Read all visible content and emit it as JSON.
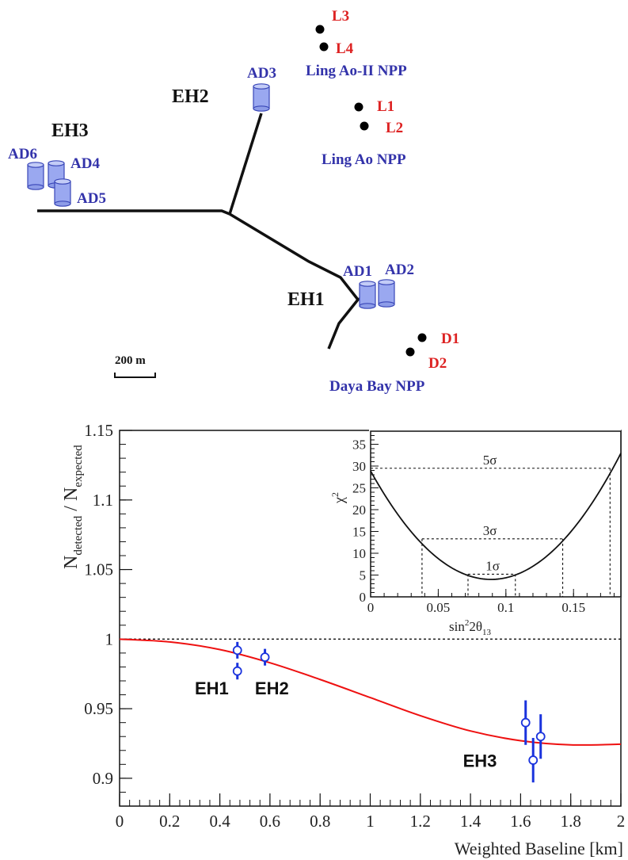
{
  "map": {
    "halls": [
      {
        "id": "EH1",
        "label": "EH1"
      },
      {
        "id": "EH2",
        "label": "EH2"
      },
      {
        "id": "EH3",
        "label": "EH3"
      }
    ],
    "detectors": [
      {
        "id": "AD1",
        "label": "AD1"
      },
      {
        "id": "AD2",
        "label": "AD2"
      },
      {
        "id": "AD3",
        "label": "AD3"
      },
      {
        "id": "AD4",
        "label": "AD4"
      },
      {
        "id": "AD5",
        "label": "AD5"
      },
      {
        "id": "AD6",
        "label": "AD6"
      }
    ],
    "reactors": [
      {
        "id": "L1",
        "label": "L1"
      },
      {
        "id": "L2",
        "label": "L2"
      },
      {
        "id": "L3",
        "label": "L3"
      },
      {
        "id": "L4",
        "label": "L4"
      },
      {
        "id": "D1",
        "label": "D1"
      },
      {
        "id": "D2",
        "label": "D2"
      }
    ],
    "plants": [
      {
        "id": "ling-ao-2",
        "label": "Ling Ao-II NPP"
      },
      {
        "id": "ling-ao",
        "label": "Ling Ao NPP"
      },
      {
        "id": "daya-bay",
        "label": "Daya Bay NPP"
      }
    ],
    "scale_label": "200 m",
    "colors": {
      "detector": "#3333aa",
      "reactor": "#dd2222",
      "tunnel": "#111111",
      "detector_fill": "#9aa8f0"
    }
  },
  "chart_data": [
    {
      "type": "scatter",
      "xlabel": "Weighted Baseline [km]",
      "ylabel_main": "N",
      "ylabel_num_sub": "detected",
      "ylabel_sep": " / N",
      "ylabel_den_sub": "expected",
      "xlim": [
        0,
        2
      ],
      "ylim": [
        0.88,
        1.15
      ],
      "xticks": [
        0,
        0.2,
        0.4,
        0.6,
        0.8,
        1,
        1.2,
        1.4,
        1.6,
        1.8,
        2
      ],
      "xtick_labels": [
        "0",
        "0.2",
        "0.4",
        "0.6",
        "0.8",
        "1",
        "1.2",
        "1.4",
        "1.6",
        "1.8",
        "2"
      ],
      "yticks": [
        0.9,
        0.95,
        1,
        1.05,
        1.1,
        1.15
      ],
      "ytick_labels": [
        "0.9",
        "0.95",
        "1",
        "1.05",
        "1.1",
        "1.15"
      ],
      "reference_line": 1.0,
      "points": [
        {
          "x": 0.47,
          "y": 0.992,
          "err": 0.006
        },
        {
          "x": 0.47,
          "y": 0.977,
          "err": 0.006
        },
        {
          "x": 0.58,
          "y": 0.987,
          "err": 0.006
        },
        {
          "x": 1.62,
          "y": 0.94,
          "err": 0.016
        },
        {
          "x": 1.65,
          "y": 0.913,
          "err": 0.016
        },
        {
          "x": 1.68,
          "y": 0.93,
          "err": 0.016
        }
      ],
      "curve": {
        "min_ratio": 0.924,
        "x_min": 1.8,
        "points": [
          [
            0,
            1.0
          ],
          [
            0.2,
            0.998
          ],
          [
            0.4,
            0.9925
          ],
          [
            0.6,
            0.983
          ],
          [
            0.8,
            0.971
          ],
          [
            1.0,
            0.958
          ],
          [
            1.2,
            0.945
          ],
          [
            1.4,
            0.934
          ],
          [
            1.6,
            0.927
          ],
          [
            1.8,
            0.924
          ],
          [
            2.0,
            0.9245
          ]
        ]
      },
      "annotations": [
        {
          "id": "eh1",
          "text": "EH1",
          "x": 0.36,
          "y": 0.975
        },
        {
          "id": "eh2",
          "text": "EH2",
          "x": 0.61,
          "y": 0.975
        },
        {
          "id": "eh3",
          "text": "EH3",
          "x": 1.5,
          "y": 0.923
        }
      ],
      "colors": {
        "points": "#1a33dd",
        "curve": "#ee1111"
      }
    },
    {
      "type": "line",
      "xlabel_main": "sin",
      "xlabel_sup": "2",
      "xlabel_rest": "2θ",
      "xlabel_sub": "13",
      "ylabel_main": "χ",
      "ylabel_sup": "2",
      "xlim": [
        0,
        0.185
      ],
      "ylim": [
        0,
        38
      ],
      "xticks": [
        0,
        0.05,
        0.1,
        0.15
      ],
      "xtick_labels": [
        "0",
        "0.05",
        "0.1",
        "0.15"
      ],
      "yticks": [
        0,
        5,
        10,
        15,
        20,
        25,
        30,
        35
      ],
      "ytick_labels": [
        "0",
        "5",
        "10",
        "15",
        "20",
        "25",
        "30",
        "35"
      ],
      "curve": {
        "x_min": 0.089,
        "chi2_min": 4.0,
        "curvature": 3140,
        "x_start": 0.0,
        "x_end": 0.185
      },
      "levels": [
        {
          "label": "5σ",
          "chi2": 29.5,
          "x_lo": 0.0,
          "x_hi": 0.177
        },
        {
          "label": "3σ",
          "chi2": 13.3,
          "x_lo": 0.038,
          "x_hi": 0.142
        },
        {
          "label": "1σ",
          "chi2": 5.2,
          "x_lo": 0.072,
          "x_hi": 0.107
        }
      ]
    }
  ]
}
